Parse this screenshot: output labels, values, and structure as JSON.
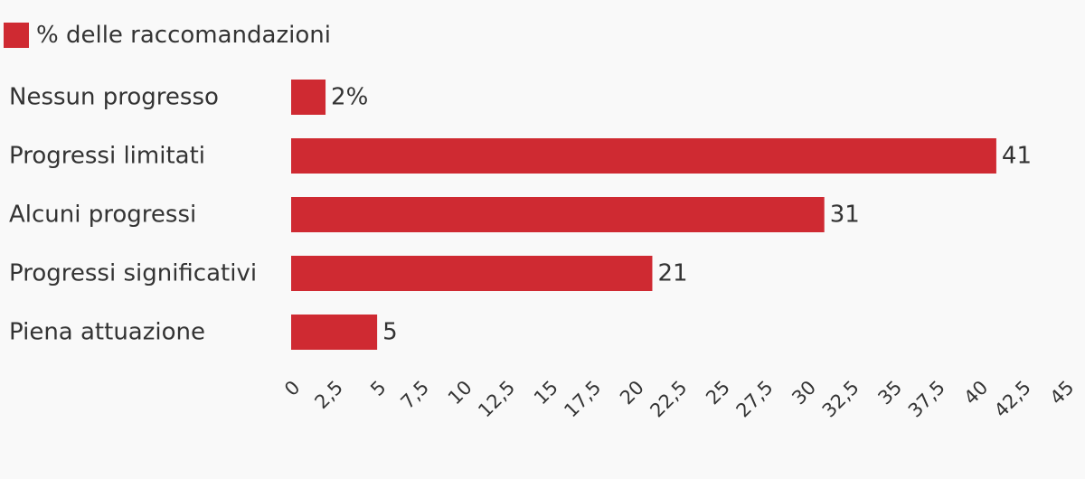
{
  "chart_data": {
    "type": "bar",
    "orientation": "horizontal",
    "categories": [
      "Nessun progresso",
      "Progressi limitati",
      "Alcuni progressi",
      "Progressi significativi",
      "Piena attuazione"
    ],
    "series": [
      {
        "name": "% delle raccomandazioni",
        "values": [
          2,
          41,
          31,
          21,
          5
        ],
        "color": "#cf2a32"
      }
    ],
    "data_labels": [
      "2%",
      "41",
      "31",
      "21",
      "5"
    ],
    "xlim": [
      0,
      45
    ],
    "x_ticks": [
      "0",
      "2,5",
      "5",
      "7,5",
      "10",
      "12,5",
      "15",
      "17,5",
      "20",
      "22,5",
      "25",
      "27,5",
      "30",
      "32,5",
      "35",
      "37,5",
      "40",
      "42,5",
      "45"
    ],
    "tick_label_rotation": "-45deg",
    "legend_position": "top-left",
    "grid": false
  }
}
